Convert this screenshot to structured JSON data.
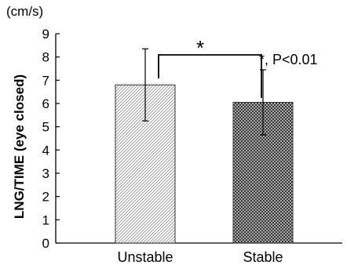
{
  "chart_data": {
    "type": "bar",
    "ylabel_unit": "(cm/s)",
    "ylabel": "LNG/TIME (eye closed)",
    "categories": [
      "Unstable",
      "Stable"
    ],
    "values": [
      6.8,
      6.05
    ],
    "error_bars": [
      1.55,
      1.4
    ],
    "ylim": [
      0,
      9
    ],
    "yticks": [
      "0",
      "1",
      "2",
      "3",
      "4",
      "5",
      "6",
      "7",
      "8",
      "9"
    ],
    "significance_bracket_mark": "*",
    "annotation": "*, P<0.01",
    "colors": {
      "unstable_pattern": "#9a9a9a",
      "stable_pattern": "#3a3a3a"
    }
  }
}
